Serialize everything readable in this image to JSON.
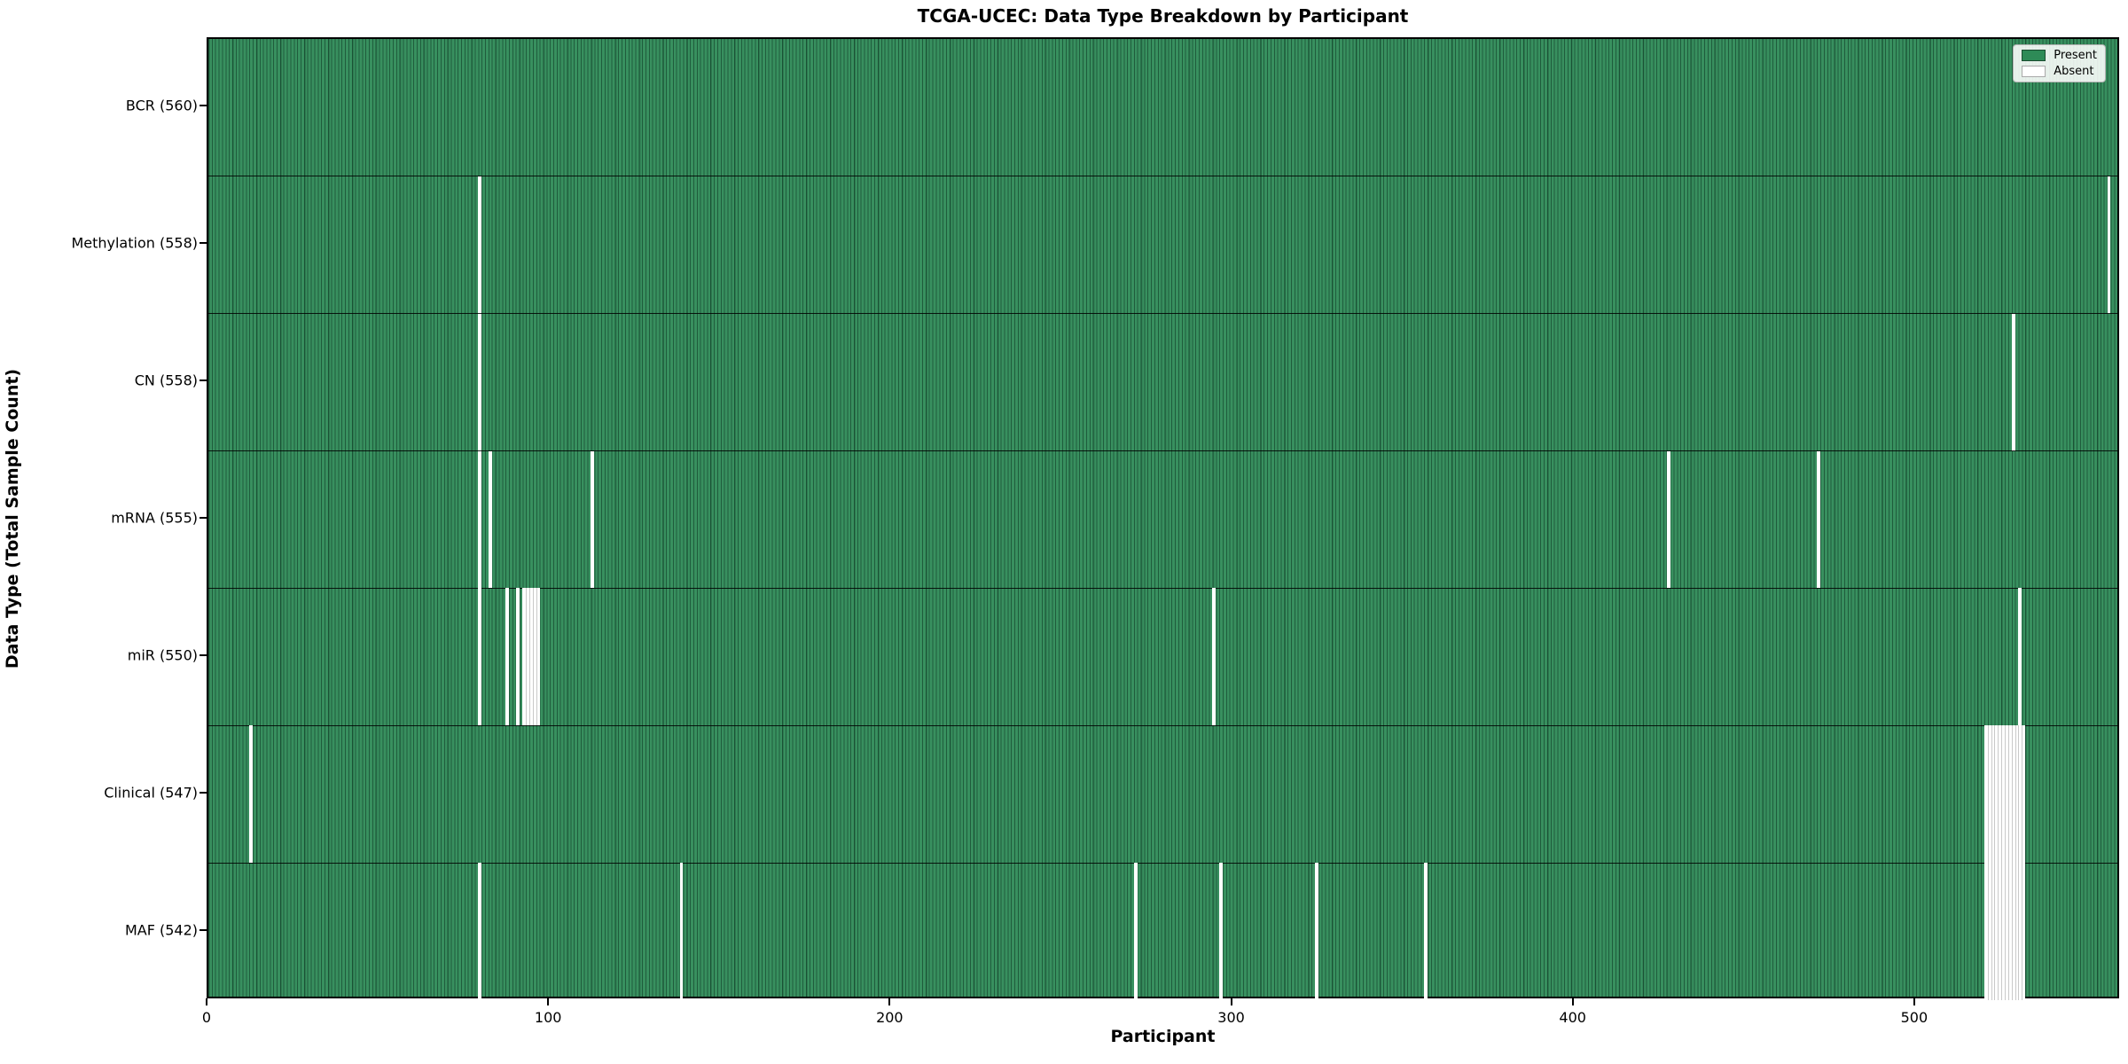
{
  "title": "TCGA-UCEC: Data Type Breakdown by Participant",
  "axes": {
    "xlabel": "Participant",
    "ylabel": "Data Type (Total Sample Count)"
  },
  "legend": {
    "present_label": "Present",
    "absent_label": "Absent"
  },
  "colors": {
    "present_fill": "#2e8b57",
    "present_edge": "#1f5c3c",
    "absent_fill": "#ffffff",
    "plot_border": "#000000"
  },
  "chart_data": {
    "type": "heatmap",
    "title": "TCGA-UCEC: Data Type Breakdown by Participant",
    "xlabel": "Participant",
    "ylabel": "Data Type (Total Sample Count)",
    "xlim": [
      0,
      560
    ],
    "x_ticks": [
      0,
      100,
      200,
      300,
      400,
      500
    ],
    "n_participants": 560,
    "grid": false,
    "legend_position": "upper right",
    "legend": [
      {
        "label": "Present",
        "color": "#2e8b57"
      },
      {
        "label": "Absent",
        "color": "#ffffff"
      }
    ],
    "rows": [
      {
        "label": "BCR (560)",
        "data_type": "BCR",
        "present_count": 560,
        "absent_participants": []
      },
      {
        "label": "Methylation (558)",
        "data_type": "Methylation",
        "present_count": 558,
        "absent_participants": [
          79,
          556
        ]
      },
      {
        "label": "CN (558)",
        "data_type": "CN",
        "present_count": 558,
        "absent_participants": [
          79,
          528
        ]
      },
      {
        "label": "mRNA (555)",
        "data_type": "mRNA",
        "present_count": 555,
        "absent_participants": [
          79,
          82,
          112,
          427,
          471
        ]
      },
      {
        "label": "miR (550)",
        "data_type": "miR",
        "present_count": 550,
        "absent_participants": [
          79,
          87,
          90,
          92,
          93,
          94,
          95,
          96,
          294,
          530
        ]
      },
      {
        "label": "Clinical (547)",
        "data_type": "Clinical",
        "present_count": 547,
        "absent_participants": [
          12,
          520,
          521,
          522,
          523,
          524,
          525,
          526,
          527,
          528,
          529,
          530,
          531
        ]
      },
      {
        "label": "MAF (542)",
        "data_type": "MAF",
        "present_count": 542,
        "absent_participants": [
          79,
          138,
          271,
          296,
          324,
          356,
          520,
          521,
          522,
          523,
          524,
          525,
          526,
          527,
          528,
          529,
          530,
          531
        ]
      }
    ]
  }
}
